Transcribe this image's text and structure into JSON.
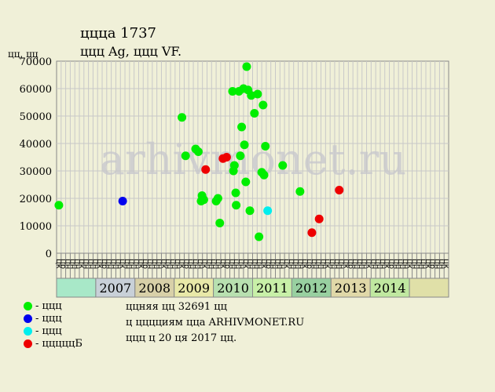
{
  "header": {
    "title_line1": "цццa 1737",
    "title_line2": "ццц  Ag, ццц  VF.",
    "y_unit": "цц, цц"
  },
  "legend": [
    {
      "color": "#00ee00",
      "label": "- ццц"
    },
    {
      "color": "#0000ee",
      "label": "- ццц"
    },
    {
      "color": "#00eeee",
      "label": "- ццц"
    },
    {
      "color": "#ee0000",
      "label": "- цццццБ"
    }
  ],
  "footer": {
    "line1": "ццняя цц 32691 цц",
    "line2": "ц цццциям цца ARHIVMONET.RU",
    "line3": "ццц ц 20 ця 2017 цц."
  },
  "watermark": "arhivmonet.ru",
  "colors": {
    "background": "#f0f0d8",
    "grid": "#c8c8c8",
    "green": "#00ee00",
    "blue": "#0000ee",
    "cyan": "#00eeee",
    "red": "#ee0000",
    "year_bands": [
      "#a8e8c8",
      "#c8d0d8",
      "#d8d0a8",
      "#e8e8a8",
      "#b8e0b0",
      "#c8f0a8",
      "#98d0a0",
      "#e0d8a8",
      "#c0e8a0",
      "#e0e0a8"
    ]
  },
  "chart_data": {
    "type": "scatter",
    "ylim": [
      0,
      70000
    ],
    "yticks": [
      "0",
      "10000",
      "20000",
      "30000",
      "40000",
      "50000",
      "60000",
      "70000"
    ],
    "x_slots": [
      "цк",
      "цр",
      "цн",
      "цн",
      "цн",
      "цк",
      "цн",
      "цн",
      "цн",
      "цк",
      "цр",
      "цн",
      "цн",
      "цн",
      "цк",
      "цн",
      "цн",
      "цн",
      "цк",
      "цр",
      "цн",
      "цн",
      "цн",
      "цк",
      "цн",
      "цн",
      "цн",
      "цк",
      "цр",
      "цн",
      "цн",
      "цн",
      "цк",
      "цн",
      "цн",
      "цн",
      "цк",
      "цр",
      "цн",
      "цн",
      "цн",
      "цк",
      "цн",
      "цн",
      "цн",
      "цк",
      "цр",
      "цн",
      "цн",
      "цн",
      "цк",
      "цн",
      "цн",
      "цн",
      "цк",
      "цр",
      "цн",
      "цн",
      "цн",
      "цк",
      "цн",
      "цн",
      "цн",
      "цк",
      "цр",
      "цн",
      "цн",
      "цн",
      "цк",
      "цн",
      "цн",
      "цн",
      "цк",
      "цр",
      "цн",
      "цн",
      "цн",
      "цк",
      "цн",
      "цн",
      "цн",
      "цк",
      "цр",
      "цн",
      "цн",
      "цк"
    ],
    "years": [
      {
        "label": "",
        "band": 0
      },
      {
        "label": "2007",
        "band": 1
      },
      {
        "label": "2008",
        "band": 2
      },
      {
        "label": "2009",
        "band": 3
      },
      {
        "label": "2010",
        "band": 4
      },
      {
        "label": "2011",
        "band": 5
      },
      {
        "label": "2012",
        "band": 6
      },
      {
        "label": "2013",
        "band": 7
      },
      {
        "label": "2014",
        "band": 8
      },
      {
        "label": "",
        "band": 9
      }
    ],
    "series": [
      {
        "name": "ццц",
        "color": "#00ee00",
        "points": [
          [
            0.5,
            17500
          ],
          [
            27.5,
            49500
          ],
          [
            28.3,
            35500
          ],
          [
            30.5,
            38000
          ],
          [
            31.1,
            37000
          ],
          [
            31.7,
            19000
          ],
          [
            31.9,
            21000
          ],
          [
            32.3,
            19500
          ],
          [
            35.0,
            19000
          ],
          [
            35.4,
            20000
          ],
          [
            35.8,
            11000
          ],
          [
            38.6,
            59000
          ],
          [
            38.8,
            30000
          ],
          [
            39.0,
            32000
          ],
          [
            39.3,
            22000
          ],
          [
            39.4,
            17500
          ],
          [
            40.0,
            59000
          ],
          [
            40.3,
            35500
          ],
          [
            40.6,
            46000
          ],
          [
            41.0,
            60000
          ],
          [
            41.2,
            39500
          ],
          [
            41.5,
            26000
          ],
          [
            41.7,
            68000
          ],
          [
            42.0,
            59500
          ],
          [
            42.4,
            15500
          ],
          [
            42.7,
            57500
          ],
          [
            43.4,
            51000
          ],
          [
            44.1,
            58000
          ],
          [
            44.4,
            6000
          ],
          [
            45.0,
            29500
          ],
          [
            45.3,
            54000
          ],
          [
            45.5,
            28500
          ],
          [
            45.8,
            39000
          ],
          [
            49.6,
            32000
          ],
          [
            53.4,
            22500
          ]
        ]
      },
      {
        "name": "ццц",
        "color": "#0000ee",
        "points": [
          [
            14.5,
            19000
          ]
        ]
      },
      {
        "name": "ццц",
        "color": "#00eeee",
        "points": [
          [
            46.3,
            15500
          ]
        ]
      },
      {
        "name": "цццццБ",
        "color": "#ee0000",
        "points": [
          [
            32.7,
            30500
          ],
          [
            36.5,
            34500
          ],
          [
            37.3,
            35000
          ],
          [
            56.0,
            7500
          ],
          [
            57.6,
            12500
          ],
          [
            62.0,
            23000
          ]
        ]
      }
    ]
  }
}
